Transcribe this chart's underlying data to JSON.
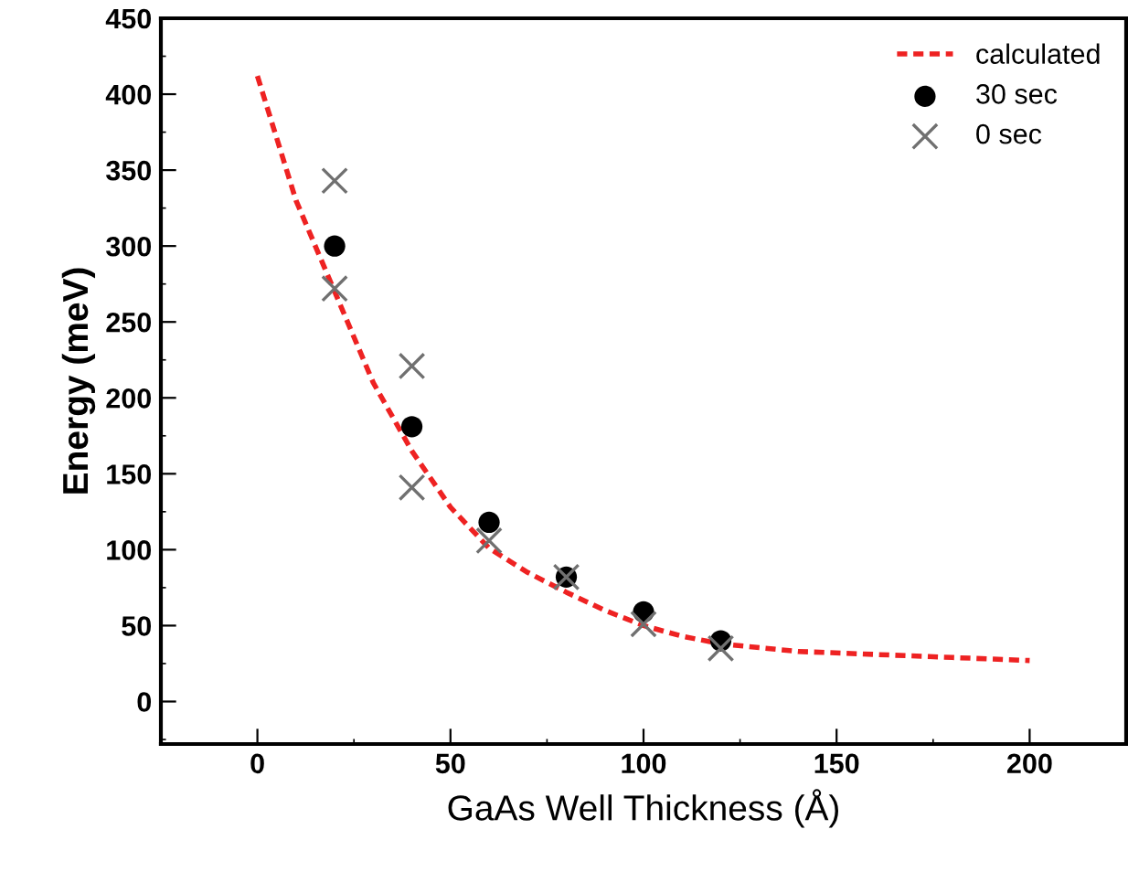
{
  "chart_data": {
    "type": "scatter",
    "xlabel": "GaAs Well Thickness (Å)",
    "ylabel": "Energy (meV)",
    "xlim": [
      -25,
      225
    ],
    "xticks": [
      0,
      50,
      100,
      150,
      200
    ],
    "ylim": [
      -28,
      450
    ],
    "yticks": [
      0,
      50,
      100,
      150,
      200,
      250,
      300,
      350,
      400,
      450
    ],
    "grid": false,
    "legend": "top right",
    "series": [
      {
        "name": "calculated",
        "type": "line",
        "color": "#ee2222",
        "line_style": "dashed",
        "marker": "none",
        "x": [
          0,
          10,
          20,
          30,
          40,
          50,
          60,
          70,
          80,
          90,
          100,
          110,
          120,
          140,
          160,
          180,
          200
        ],
        "values": [
          412,
          330,
          270,
          210,
          165,
          128,
          101,
          85,
          72,
          60,
          50,
          43,
          38,
          33,
          31,
          29,
          27
        ]
      },
      {
        "name": "30 sec",
        "color": "#000000",
        "marker": "circle",
        "x": [
          20,
          40,
          60,
          80,
          100,
          120
        ],
        "values": [
          300,
          181,
          118,
          82,
          59,
          40
        ]
      },
      {
        "name": "0 sec",
        "color": "#707070",
        "marker": "cross",
        "x": [
          20,
          20,
          40,
          40,
          60,
          80,
          100,
          120
        ],
        "values": [
          343,
          272,
          221,
          141,
          106,
          82,
          51,
          35
        ]
      }
    ]
  }
}
